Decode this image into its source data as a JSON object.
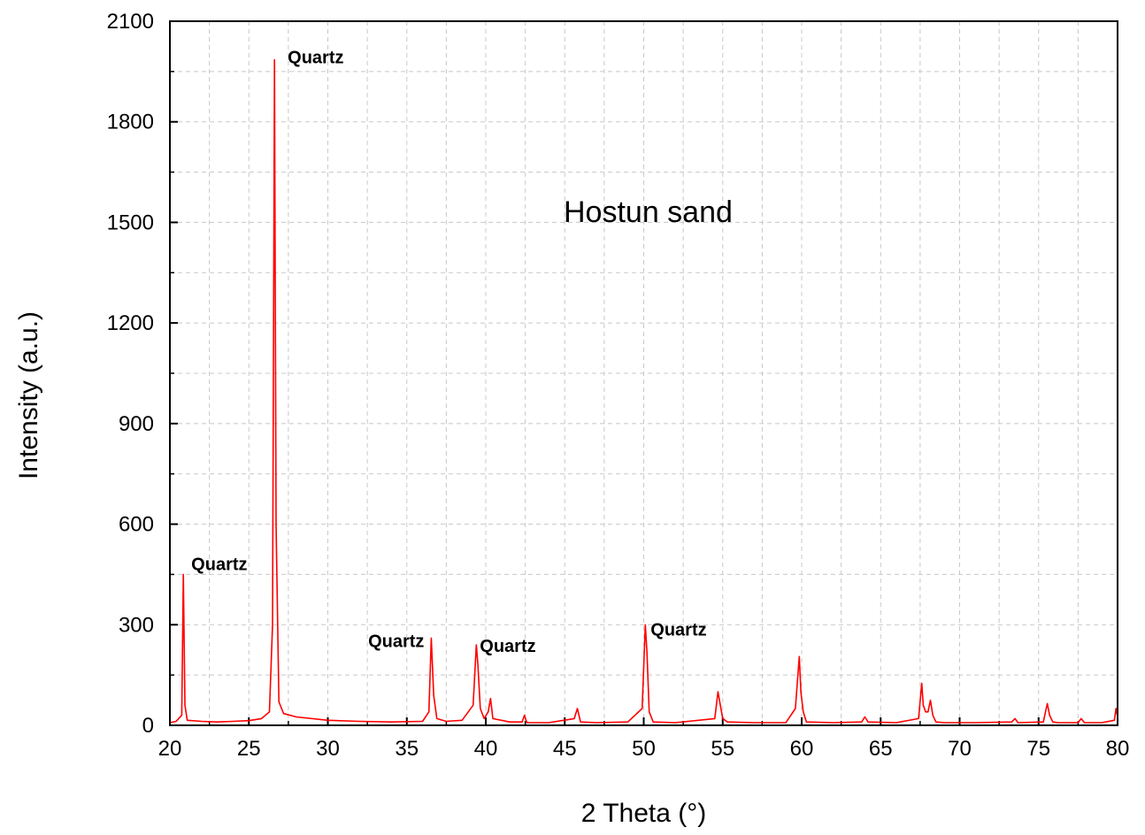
{
  "chart_data": {
    "type": "line",
    "title": "",
    "xlabel": "2 Theta (°)",
    "ylabel": "Intensity (a.u.)",
    "xlim": [
      20,
      80
    ],
    "ylim": [
      0,
      2100
    ],
    "x_ticks": [
      20,
      25,
      30,
      35,
      40,
      45,
      50,
      55,
      60,
      65,
      70,
      75,
      80
    ],
    "y_ticks": [
      0,
      300,
      600,
      900,
      1200,
      1500,
      1800,
      2100
    ],
    "grid": true,
    "line_color": "#ff0000",
    "sample_label": "Hostun sand",
    "series": [
      {
        "x": [
          20.0,
          20.4,
          20.75,
          20.85,
          20.95,
          21.1,
          22.0,
          23.0,
          24.0,
          25.0,
          25.8,
          26.3,
          26.5,
          26.62,
          26.72,
          26.9,
          27.2,
          28.0,
          30.0,
          32.0,
          34.0,
          36.0,
          36.4,
          36.55,
          36.7,
          36.9,
          37.5,
          38.5,
          39.2,
          39.4,
          39.5,
          39.65,
          39.9,
          40.15,
          40.3,
          40.45,
          41.5,
          42.3,
          42.45,
          42.6,
          44.0,
          45.6,
          45.8,
          46.0,
          47.0,
          49.0,
          49.9,
          50.1,
          50.2,
          50.35,
          50.6,
          52.0,
          54.5,
          54.7,
          54.85,
          55.0,
          55.3,
          57.0,
          59.0,
          59.6,
          59.85,
          59.95,
          60.1,
          60.3,
          62.0,
          63.8,
          64.0,
          64.2,
          66.0,
          67.4,
          67.6,
          67.7,
          67.85,
          68.0,
          68.15,
          68.3,
          68.5,
          69.0,
          71.0,
          73.3,
          73.5,
          73.7,
          75.3,
          75.55,
          75.7,
          75.9,
          76.2,
          77.5,
          77.7,
          77.9,
          79.0,
          79.8,
          79.9,
          80.0
        ],
        "y": [
          8,
          12,
          30,
          450,
          60,
          15,
          12,
          10,
          12,
          14,
          20,
          40,
          300,
          1985,
          600,
          70,
          35,
          25,
          15,
          12,
          10,
          12,
          40,
          260,
          90,
          20,
          12,
          15,
          60,
          240,
          180,
          50,
          20,
          40,
          80,
          20,
          10,
          10,
          30,
          8,
          8,
          20,
          50,
          10,
          8,
          10,
          50,
          300,
          220,
          40,
          10,
          8,
          20,
          100,
          60,
          20,
          10,
          8,
          8,
          50,
          205,
          100,
          40,
          10,
          8,
          10,
          25,
          10,
          8,
          20,
          125,
          60,
          40,
          40,
          75,
          30,
          10,
          8,
          8,
          10,
          20,
          8,
          10,
          65,
          30,
          10,
          8,
          8,
          20,
          8,
          8,
          15,
          50,
          25
        ]
      }
    ],
    "annotations": [
      {
        "text": "Quartz",
        "x": 20.85,
        "y": 450
      },
      {
        "text": "Quartz",
        "x": 26.62,
        "y": 1985
      },
      {
        "text": "Quartz",
        "x": 36.55,
        "y": 260
      },
      {
        "text": "Quartz",
        "x": 39.4,
        "y": 240
      },
      {
        "text": "Quartz",
        "x": 50.1,
        "y": 300
      }
    ]
  }
}
